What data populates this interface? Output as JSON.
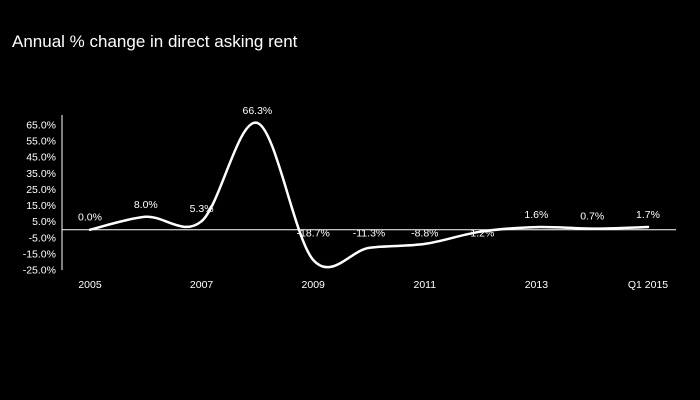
{
  "chart_data": {
    "type": "line",
    "title": "Annual % change in direct asking rent",
    "xlabel": "",
    "ylabel": "",
    "x": [
      "2005",
      "2006",
      "2007",
      "2008",
      "2009",
      "2010",
      "2011",
      "2012",
      "2013",
      "2014",
      "Q1 2015"
    ],
    "x_tick_labels": [
      "2005",
      "",
      "2007",
      "",
      "2009",
      "",
      "2011",
      "",
      "2013",
      "",
      "Q1 2015"
    ],
    "series": [
      {
        "values": [
          0.0,
          8.0,
          5.3,
          66.3,
          -18.7,
          -11.3,
          -8.8,
          -1.2,
          1.6,
          0.7,
          1.7
        ],
        "labels": [
          "0.0%",
          "8.0%",
          "5.3%",
          "66.3%",
          "-18.7%",
          "-11.3%",
          "-8.8%",
          "-1.2%",
          "1.6%",
          "0.7%",
          "1.7%"
        ]
      }
    ],
    "y_ticks": [
      "65.0%",
      "55.0%",
      "45.0%",
      "35.0%",
      "25.0%",
      "15.0%",
      "5.0%",
      "-5.0%",
      "-15.0%",
      "-25.0%"
    ],
    "ylim": [
      -25,
      65
    ],
    "grid": false,
    "legend": "none",
    "colors": {
      "background": "#000000",
      "line": "#ffffff",
      "text": "#ffffff"
    }
  }
}
